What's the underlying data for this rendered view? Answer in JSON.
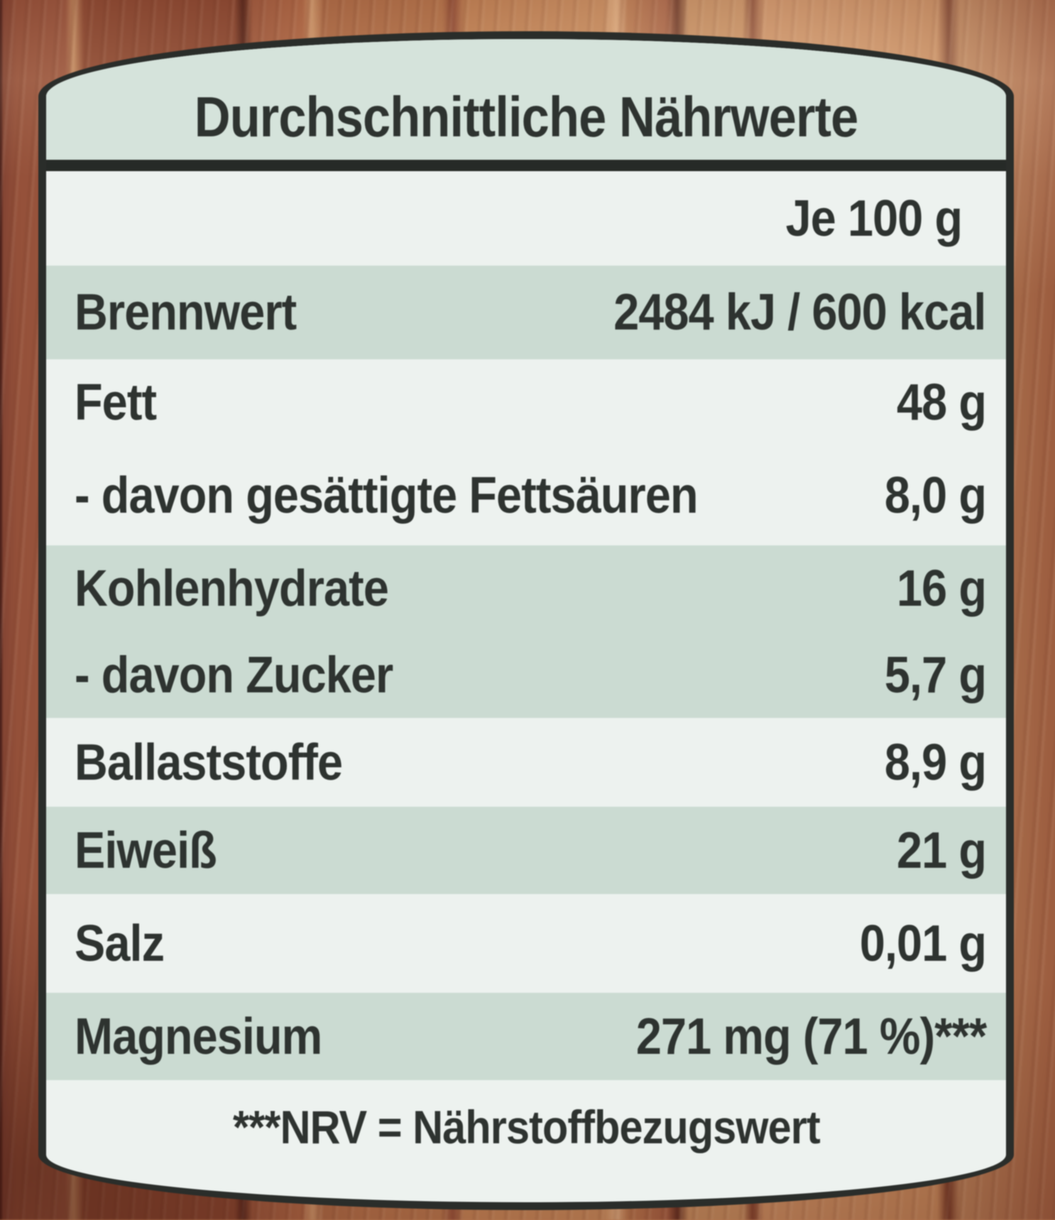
{
  "label": {
    "title": "Durchschnittliche Nährwerte",
    "serving_header": "Je 100 g",
    "rows": [
      {
        "label": "Brennwert",
        "value": "2484 kJ / 600 kcal"
      },
      {
        "label": "Fett",
        "value": "48 g"
      },
      {
        "label": "- davon gesättigte Fettsäuren",
        "value": "8,0 g"
      },
      {
        "label": "Kohlenhydrate",
        "value": "16 g"
      },
      {
        "label": "- davon Zucker",
        "value": "5,7 g"
      },
      {
        "label": "Ballaststoffe",
        "value": "8,9 g"
      },
      {
        "label": "Eiweiß",
        "value": "21 g"
      },
      {
        "label": "Salz",
        "value": "0,01 g"
      },
      {
        "label": "Magnesium",
        "value": "271 mg (71 %)***"
      }
    ],
    "footnote": "***NRV = Nährstoffbezugswert"
  },
  "colors": {
    "label_background": "#edf2ef",
    "row_tint_green": "#cbdbd2",
    "header_green": "#d5e3db",
    "border_black": "#2a2d2a",
    "text": "#2e3330",
    "wood_base": "#b5764e"
  }
}
